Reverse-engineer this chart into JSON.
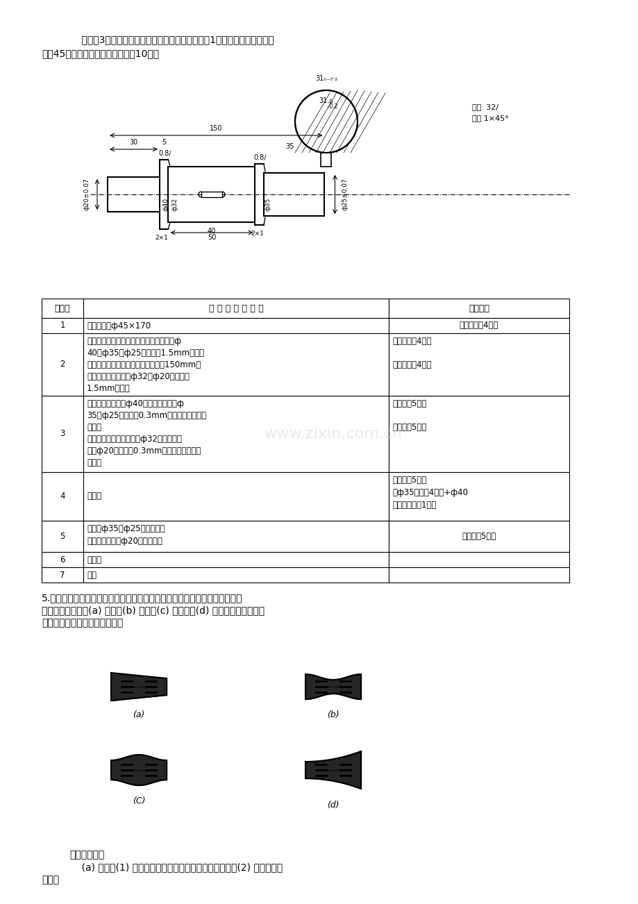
{
  "bg_color": "#ffffff",
  "page_width": 9.2,
  "page_height": 13.02,
  "intro_text_line1": "    编制图3所示阶梯轴零件的工艺规程，并填写在表1所示的表格中。零件材",
  "intro_text_line2": "料为45，毛坯为棒料，生产批量：10件。",
  "table_header": [
    "工序号",
    "工序名称及内容",
    "定位基准"
  ],
  "table_rows": [
    [
      "1",
      "下料，棒料ф45×170",
      "外圆表面（4点）"
    ],
    [
      "2",
      "夹左端，车右端面，打中心孔；粗车右端ф\n40、ф35、ф25外圆，留1.5mm余量。\n调头，夹右端，车左端面，保证全长150mm，\n打中心孔；粗车左端ф32、ф20外圆，留\n1.5mm余量。",
      "外圆表面（4点）\n\n外圆表面（4点）"
    ],
    [
      "3",
      "顶尖定位，半精车ф40外圆，成；精车ф\n35、ф25外圆，留0.3mm磨量；切退刀槽，\n倒角。\n调头，顶尖定位，半精车ф32外圆，成；\n精车ф20外圆，留0.3mm磨量；切退刀槽，\n倒角。",
      "顶尖孔（5点）\n\n顶尖孔（5点）"
    ],
    [
      "4",
      "铣键槽",
      "顶尖孔（5点）\n或ф35外圆（4点）+ф40\n外圆右端面（1点）"
    ],
    [
      "5",
      "磨一端ф35、ф25外圆，成；\n调头，磨另一端ф20外圆，成。",
      "顶尖孔（5点）"
    ],
    [
      "6",
      "去毛刺",
      ""
    ],
    [
      "7",
      "检验",
      ""
    ]
  ],
  "question5_text_line1": "5.在车床上加工一批光轴的外圆，加工后经度量若整批工件发现有下列几何形",
  "question5_text_line2": "状误差（图示）：(a) 锥形，(b) 鞍形，(c) 腰鼓形，(d) 喇叭形，试分别说明",
  "question5_text_line3": "可能产生上述误差的各种因素。",
  "answer_line1": "解：（图示）",
  "answer_line2": "    (a) 锥形：(1) 车床两顶尖与纵向导轨在水平面不平行；(2) 车刀的均匀",
  "answer_line3": "磨损。"
}
